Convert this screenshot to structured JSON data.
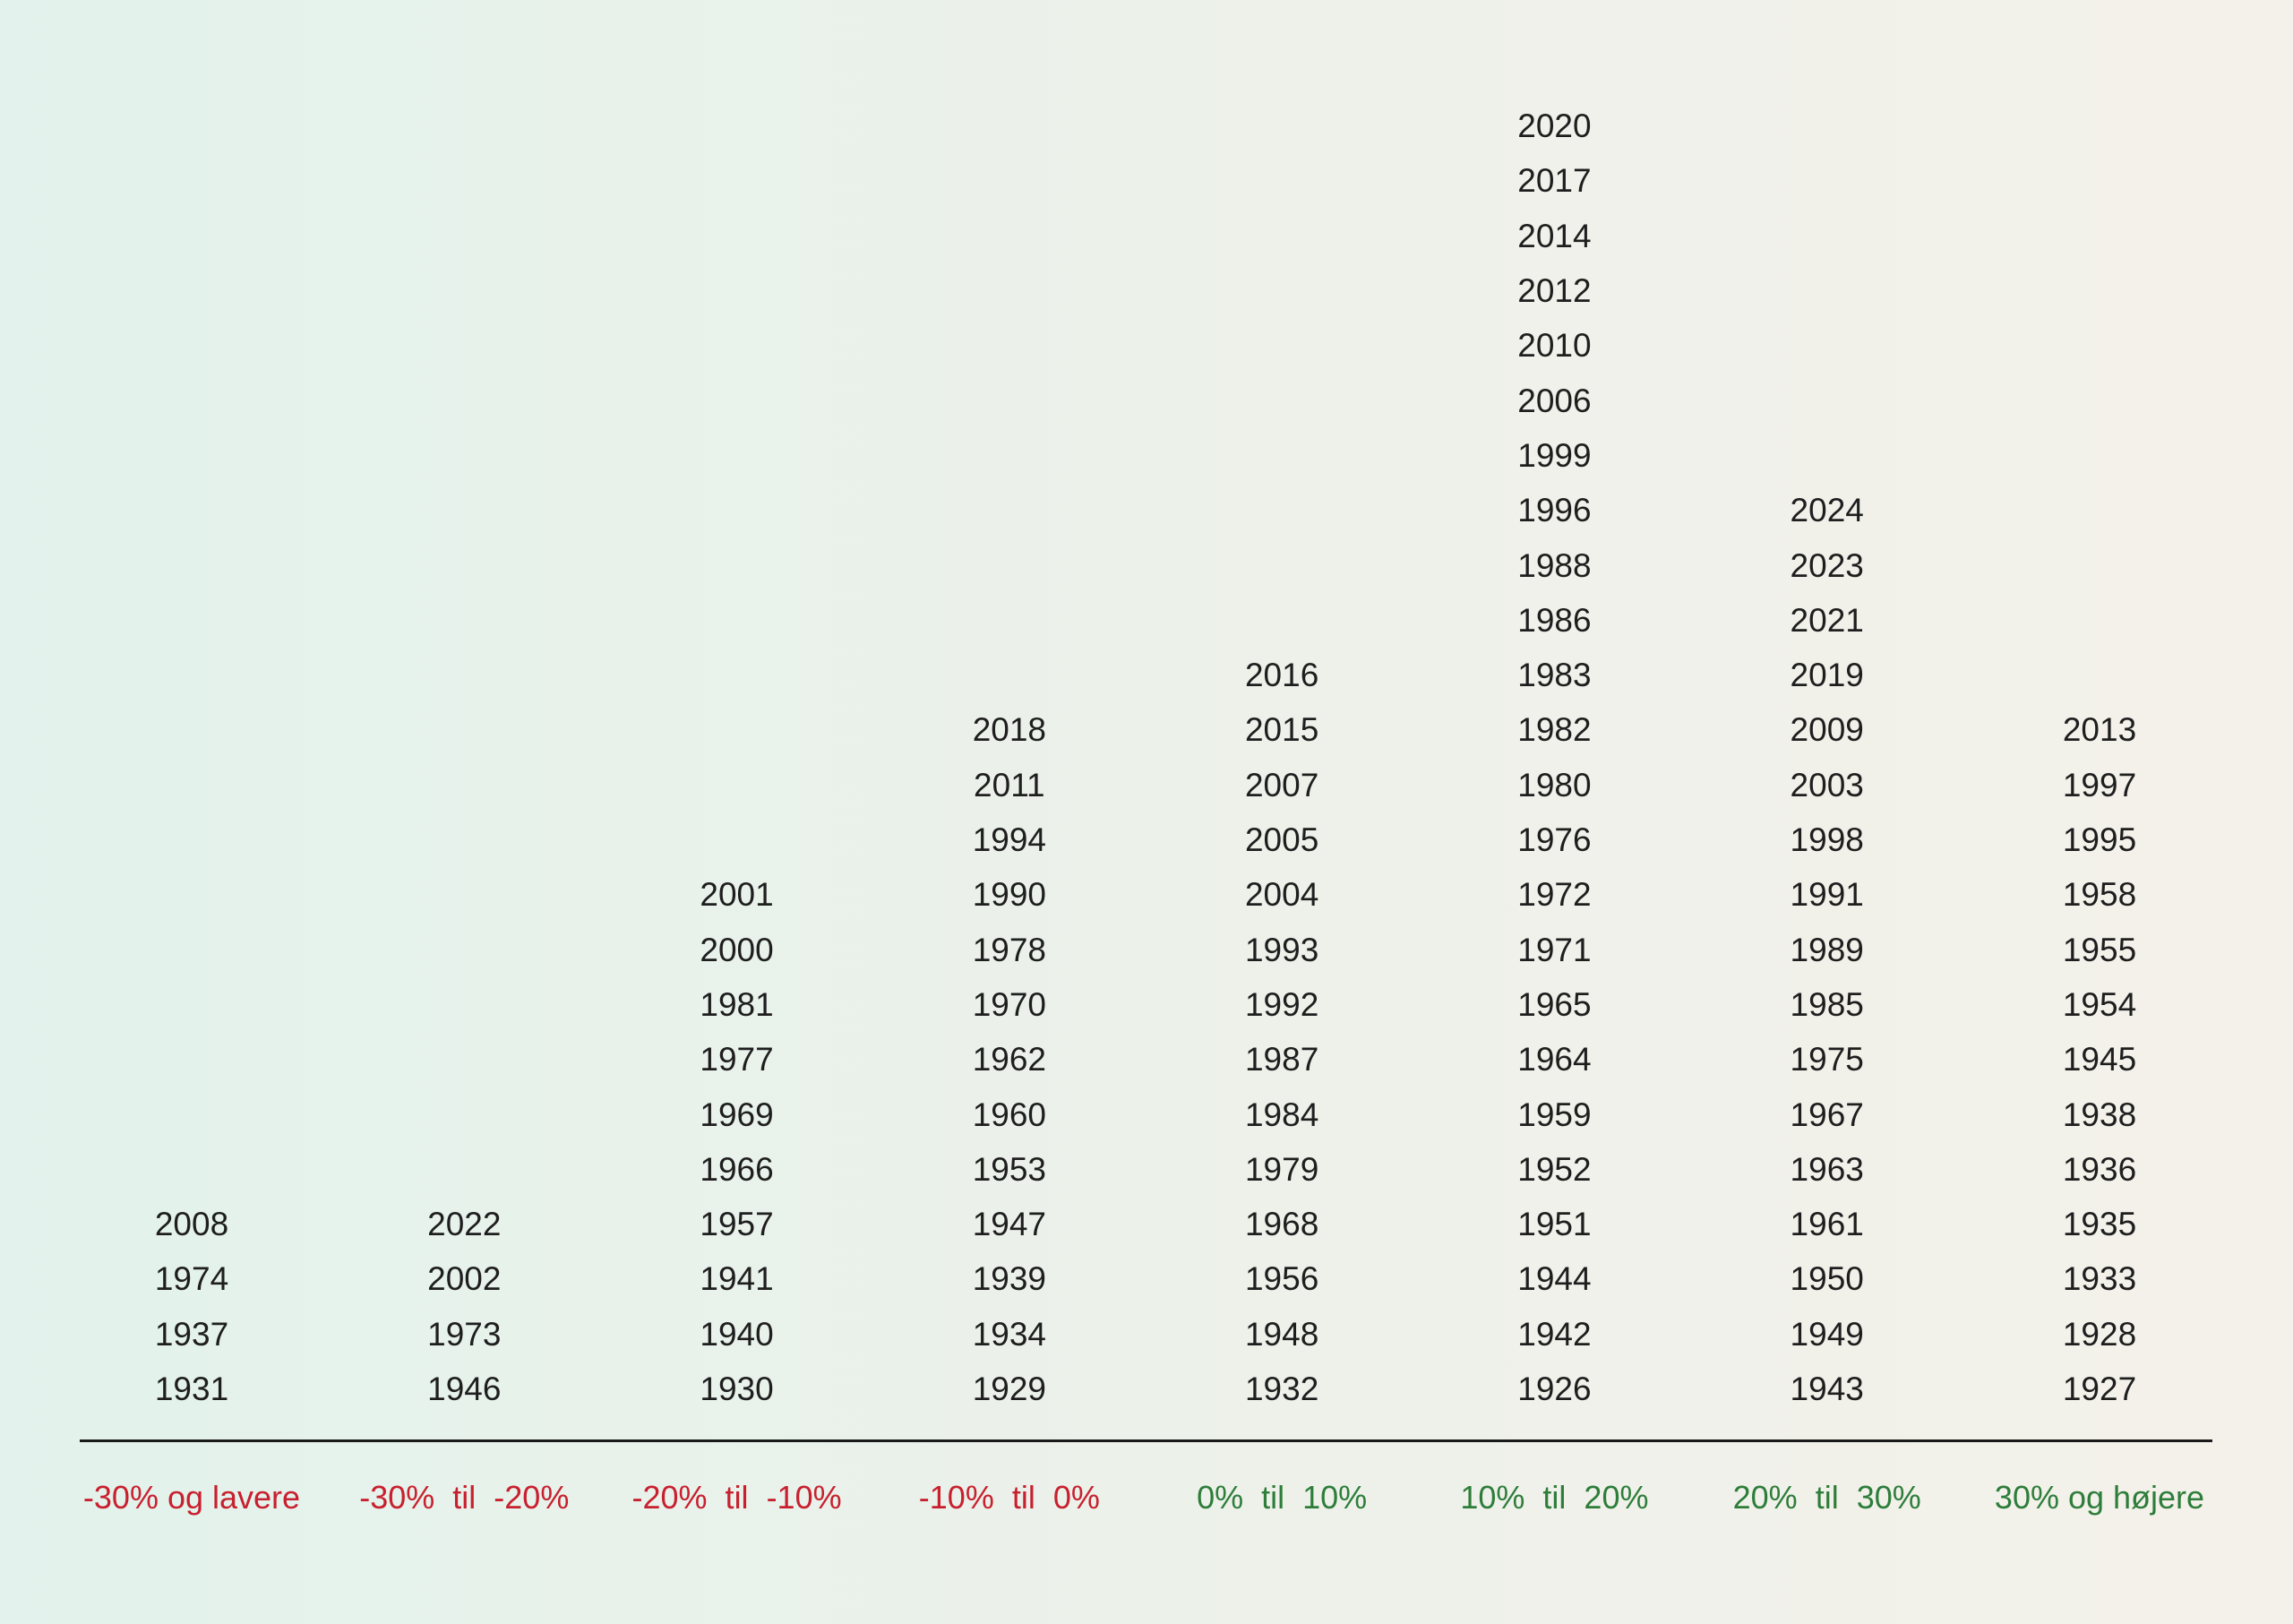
{
  "chart_data": {
    "type": "table",
    "title": "",
    "xlabel": "",
    "ylabel": "",
    "colors": {
      "negative": "#c8202e",
      "positive": "#2e7d3a",
      "text": "#1e1e1e",
      "axis": "#1a1a1a"
    },
    "categories": [
      "-30% og lavere",
      "-30%  til  -20%",
      "-20%  til  -10%",
      "-10%  til  0%",
      "0%  til  10%",
      "10%  til  20%",
      "20%  til  30%",
      "30% og højere"
    ],
    "category_sign": [
      "negative",
      "negative",
      "negative",
      "negative",
      "positive",
      "positive",
      "positive",
      "positive"
    ],
    "columns": [
      [
        "2008",
        "1974",
        "1937",
        "1931"
      ],
      [
        "2022",
        "2002",
        "1973",
        "1946"
      ],
      [
        "2001",
        "2000",
        "1981",
        "1977",
        "1969",
        "1966",
        "1957",
        "1941",
        "1940",
        "1930"
      ],
      [
        "2018",
        "2011",
        "1994",
        "1990",
        "1978",
        "1970",
        "1962",
        "1960",
        "1953",
        "1947",
        "1939",
        "1934",
        "1929"
      ],
      [
        "2016",
        "2015",
        "2007",
        "2005",
        "2004",
        "1993",
        "1992",
        "1987",
        "1984",
        "1979",
        "1968",
        "1956",
        "1948",
        "1932"
      ],
      [
        "2020",
        "2017",
        "2014",
        "2012",
        "2010",
        "2006",
        "1999",
        "1996",
        "1988",
        "1986",
        "1983",
        "1982",
        "1980",
        "1976",
        "1972",
        "1971",
        "1965",
        "1964",
        "1959",
        "1952",
        "1951",
        "1944",
        "1942",
        "1926"
      ],
      [
        "2024",
        "2023",
        "2021",
        "2019",
        "2009",
        "2003",
        "1998",
        "1991",
        "1989",
        "1985",
        "1975",
        "1967",
        "1963",
        "1961",
        "1950",
        "1949",
        "1943"
      ],
      [
        "2013",
        "1997",
        "1995",
        "1958",
        "1955",
        "1954",
        "1945",
        "1938",
        "1936",
        "1935",
        "1933",
        "1928",
        "1927"
      ]
    ]
  }
}
